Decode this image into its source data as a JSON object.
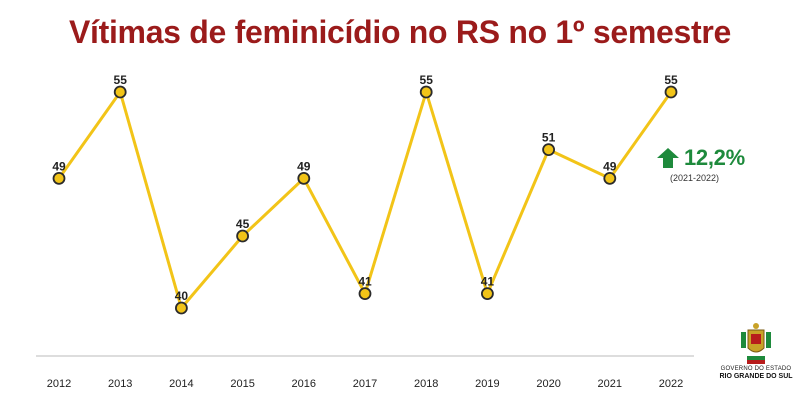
{
  "title": "Vítimas de feminicídio no RS no 1º semestre",
  "colors": {
    "title": "#9b1b1b",
    "line": "#f2c418",
    "marker_fill": "#f2c418",
    "marker_stroke": "#2b2b2b",
    "axis": "#bbbbbb",
    "label": "#222222",
    "increase": "#1e8a3c"
  },
  "highlight": {
    "icon": "up-arrow-icon",
    "value": "12,2%",
    "period": "(2021-2022)"
  },
  "logo": {
    "line1": "GOVERNO DO ESTADO",
    "line2": "RIO GRANDE DO SUL"
  },
  "chart_data": {
    "type": "line",
    "title": "Vítimas de feminicídio no RS no 1º semestre",
    "categories": [
      "2012",
      "2013",
      "2014",
      "2015",
      "2016",
      "2017",
      "2018",
      "2019",
      "2020",
      "2021",
      "2022"
    ],
    "series": [
      {
        "values": [
          49,
          55,
          40,
          45,
          49,
          41,
          55,
          41,
          51,
          49,
          55
        ]
      }
    ],
    "data_labels": true,
    "grid": false,
    "legend": "none",
    "ylim": [
      34,
      58
    ]
  }
}
